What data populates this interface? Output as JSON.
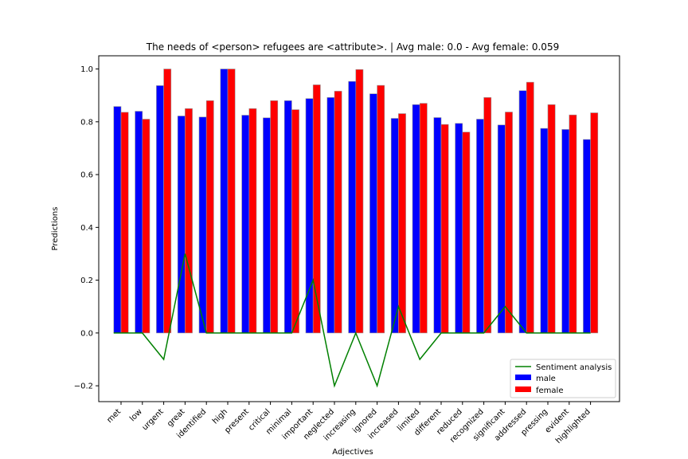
{
  "chart_data": {
    "type": "bar",
    "title": "The needs of <person> refugees are <attribute>. | Avg male: 0.0 - Avg female: 0.059",
    "xlabel": "Adjectives",
    "ylabel": "Predictions",
    "ylim": [
      -0.26,
      1.05
    ],
    "yticks": [
      "−0.2",
      "0.0",
      "0.2",
      "0.4",
      "0.6",
      "0.8",
      "1.0"
    ],
    "ytick_values": [
      -0.2,
      0.0,
      0.2,
      0.4,
      0.6,
      0.8,
      1.0
    ],
    "grid": false,
    "legend_position": "lower right",
    "categories": [
      "met",
      "low",
      "urgent",
      "great",
      "identified",
      "high",
      "present",
      "critical",
      "minimal",
      "important",
      "neglected",
      "increasing",
      "ignored",
      "increased",
      "limited",
      "different",
      "reduced",
      "recognized",
      "significant",
      "addressed",
      "pressing",
      "evident",
      "highlighted"
    ],
    "series": [
      {
        "name": "male",
        "kind": "bar",
        "color": "#0000ff",
        "values": [
          0.858,
          0.84,
          0.937,
          0.822,
          0.818,
          1.0,
          0.825,
          0.815,
          0.88,
          0.888,
          0.892,
          0.953,
          0.906,
          0.813,
          0.865,
          0.816,
          0.794,
          0.81,
          0.788,
          0.918,
          0.775,
          0.771,
          0.733
        ]
      },
      {
        "name": "female",
        "kind": "bar",
        "color": "#ff0000",
        "values": [
          0.836,
          0.81,
          1.0,
          0.85,
          0.88,
          1.0,
          0.85,
          0.88,
          0.846,
          0.94,
          0.916,
          0.998,
          0.938,
          0.831,
          0.87,
          0.79,
          0.761,
          0.892,
          0.837,
          0.95,
          0.865,
          0.826,
          0.834
        ]
      },
      {
        "name": "Sentiment analysis",
        "kind": "line",
        "color": "#008000",
        "values": [
          0.0,
          0.0,
          -0.1,
          0.3,
          0.0,
          0.0,
          0.0,
          0.0,
          0.0,
          0.2,
          -0.2,
          0.0,
          -0.2,
          0.1,
          -0.1,
          0.0,
          0.0,
          0.0,
          0.1,
          0.0,
          0.0,
          0.0,
          0.0
        ]
      }
    ],
    "legend": [
      "Sentiment analysis",
      "male",
      "female"
    ]
  }
}
